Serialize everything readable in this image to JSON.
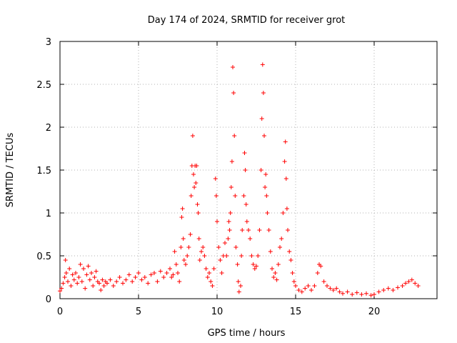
{
  "chart_data": {
    "type": "scatter",
    "title": "Day 174 of 2024, SRMTID for receiver grot",
    "xlabel": "GPS time / hours",
    "ylabel": "SRMTID / TECUs",
    "xlim": [
      0,
      24
    ],
    "ylim": [
      0,
      3
    ],
    "xticks": [
      0,
      5,
      10,
      15,
      20
    ],
    "xtick_labels": [
      "0",
      "5",
      "10",
      "15",
      "20"
    ],
    "yticks": [
      0,
      0.5,
      1,
      1.5,
      2,
      2.5,
      3
    ],
    "ytick_labels": [
      "0",
      "0.5",
      "1",
      "1.5",
      "2",
      "2.5",
      "3"
    ],
    "grid": true,
    "marker": "+",
    "color": "#ff0000",
    "series": [
      {
        "name": "SRMTID",
        "points": [
          [
            0.0,
            0.09
          ],
          [
            0.1,
            0.12
          ],
          [
            0.2,
            0.18
          ],
          [
            0.3,
            0.25
          ],
          [
            0.35,
            0.45
          ],
          [
            0.4,
            0.3
          ],
          [
            0.5,
            0.2
          ],
          [
            0.6,
            0.35
          ],
          [
            0.7,
            0.15
          ],
          [
            0.8,
            0.28
          ],
          [
            0.9,
            0.22
          ],
          [
            1.0,
            0.3
          ],
          [
            1.1,
            0.18
          ],
          [
            1.2,
            0.25
          ],
          [
            1.3,
            0.4
          ],
          [
            1.4,
            0.2
          ],
          [
            1.5,
            0.35
          ],
          [
            1.6,
            0.12
          ],
          [
            1.7,
            0.28
          ],
          [
            1.8,
            0.38
          ],
          [
            1.9,
            0.22
          ],
          [
            2.0,
            0.3
          ],
          [
            2.1,
            0.15
          ],
          [
            2.2,
            0.25
          ],
          [
            2.3,
            0.32
          ],
          [
            2.4,
            0.2
          ],
          [
            2.5,
            0.18
          ],
          [
            2.6,
            0.1
          ],
          [
            2.7,
            0.22
          ],
          [
            2.8,
            0.15
          ],
          [
            2.9,
            0.2
          ],
          [
            3.0,
            0.18
          ],
          [
            3.2,
            0.22
          ],
          [
            3.4,
            0.15
          ],
          [
            3.6,
            0.2
          ],
          [
            3.8,
            0.25
          ],
          [
            4.0,
            0.18
          ],
          [
            4.2,
            0.22
          ],
          [
            4.4,
            0.28
          ],
          [
            4.6,
            0.2
          ],
          [
            4.8,
            0.25
          ],
          [
            5.0,
            0.3
          ],
          [
            5.2,
            0.22
          ],
          [
            5.4,
            0.25
          ],
          [
            5.6,
            0.18
          ],
          [
            5.8,
            0.28
          ],
          [
            6.0,
            0.3
          ],
          [
            6.2,
            0.2
          ],
          [
            6.4,
            0.32
          ],
          [
            6.6,
            0.25
          ],
          [
            6.8,
            0.3
          ],
          [
            7.0,
            0.35
          ],
          [
            7.1,
            0.25
          ],
          [
            7.2,
            0.28
          ],
          [
            7.3,
            0.55
          ],
          [
            7.4,
            0.4
          ],
          [
            7.5,
            0.3
          ],
          [
            7.6,
            0.2
          ],
          [
            7.7,
            0.6
          ],
          [
            7.75,
            0.95
          ],
          [
            7.8,
            1.05
          ],
          [
            7.85,
            0.7
          ],
          [
            7.9,
            0.45
          ],
          [
            8.0,
            0.4
          ],
          [
            8.1,
            0.5
          ],
          [
            8.2,
            0.6
          ],
          [
            8.3,
            0.75
          ],
          [
            8.35,
            1.2
          ],
          [
            8.4,
            1.55
          ],
          [
            8.45,
            1.9
          ],
          [
            8.5,
            1.45
          ],
          [
            8.55,
            1.3
          ],
          [
            8.6,
            1.55
          ],
          [
            8.65,
            1.35
          ],
          [
            8.7,
            1.55
          ],
          [
            8.75,
            1.1
          ],
          [
            8.8,
            1.0
          ],
          [
            8.85,
            0.7
          ],
          [
            8.9,
            0.45
          ],
          [
            9.0,
            0.55
          ],
          [
            9.1,
            0.6
          ],
          [
            9.2,
            0.5
          ],
          [
            9.3,
            0.35
          ],
          [
            9.4,
            0.25
          ],
          [
            9.5,
            0.3
          ],
          [
            9.6,
            0.2
          ],
          [
            9.7,
            0.15
          ],
          [
            9.8,
            0.35
          ],
          [
            9.9,
            1.4
          ],
          [
            9.95,
            1.2
          ],
          [
            10.0,
            0.9
          ],
          [
            10.1,
            0.6
          ],
          [
            10.2,
            0.45
          ],
          [
            10.3,
            0.3
          ],
          [
            10.4,
            0.5
          ],
          [
            10.5,
            0.65
          ],
          [
            10.6,
            0.5
          ],
          [
            10.7,
            0.7
          ],
          [
            10.75,
            0.9
          ],
          [
            10.8,
            0.8
          ],
          [
            10.85,
            1.0
          ],
          [
            10.9,
            1.3
          ],
          [
            10.95,
            1.6
          ],
          [
            11.0,
            2.7
          ],
          [
            11.05,
            2.4
          ],
          [
            11.1,
            1.9
          ],
          [
            11.15,
            1.2
          ],
          [
            11.2,
            0.6
          ],
          [
            11.3,
            0.4
          ],
          [
            11.35,
            0.2
          ],
          [
            11.4,
            0.08
          ],
          [
            11.5,
            0.15
          ],
          [
            11.55,
            0.5
          ],
          [
            11.6,
            0.8
          ],
          [
            11.7,
            1.2
          ],
          [
            11.75,
            1.7
          ],
          [
            11.8,
            1.5
          ],
          [
            11.85,
            1.1
          ],
          [
            11.9,
            0.9
          ],
          [
            12.0,
            0.8
          ],
          [
            12.1,
            0.7
          ],
          [
            12.2,
            0.5
          ],
          [
            12.3,
            0.4
          ],
          [
            12.4,
            0.35
          ],
          [
            12.5,
            0.38
          ],
          [
            12.6,
            0.5
          ],
          [
            12.7,
            0.8
          ],
          [
            12.8,
            1.5
          ],
          [
            12.85,
            2.1
          ],
          [
            12.9,
            2.73
          ],
          [
            12.95,
            2.4
          ],
          [
            13.0,
            1.9
          ],
          [
            13.05,
            1.3
          ],
          [
            13.1,
            1.45
          ],
          [
            13.15,
            1.2
          ],
          [
            13.2,
            1.0
          ],
          [
            13.3,
            0.8
          ],
          [
            13.4,
            0.55
          ],
          [
            13.5,
            0.35
          ],
          [
            13.6,
            0.25
          ],
          [
            13.7,
            0.3
          ],
          [
            13.8,
            0.22
          ],
          [
            13.9,
            0.4
          ],
          [
            14.0,
            0.6
          ],
          [
            14.1,
            0.7
          ],
          [
            14.2,
            1.0
          ],
          [
            14.3,
            1.6
          ],
          [
            14.35,
            1.83
          ],
          [
            14.4,
            1.4
          ],
          [
            14.45,
            1.05
          ],
          [
            14.5,
            0.8
          ],
          [
            14.6,
            0.55
          ],
          [
            14.7,
            0.45
          ],
          [
            14.8,
            0.3
          ],
          [
            14.9,
            0.2
          ],
          [
            15.0,
            0.15
          ],
          [
            15.2,
            0.1
          ],
          [
            15.4,
            0.08
          ],
          [
            15.6,
            0.12
          ],
          [
            15.8,
            0.15
          ],
          [
            16.0,
            0.1
          ],
          [
            16.2,
            0.15
          ],
          [
            16.4,
            0.3
          ],
          [
            16.5,
            0.4
          ],
          [
            16.6,
            0.38
          ],
          [
            16.8,
            0.2
          ],
          [
            17.0,
            0.15
          ],
          [
            17.2,
            0.12
          ],
          [
            17.4,
            0.1
          ],
          [
            17.6,
            0.12
          ],
          [
            17.8,
            0.08
          ],
          [
            18.0,
            0.06
          ],
          [
            18.3,
            0.08
          ],
          [
            18.6,
            0.05
          ],
          [
            18.9,
            0.07
          ],
          [
            19.2,
            0.05
          ],
          [
            19.5,
            0.06
          ],
          [
            19.8,
            0.04
          ],
          [
            20.0,
            0.05
          ],
          [
            20.3,
            0.08
          ],
          [
            20.6,
            0.1
          ],
          [
            20.9,
            0.12
          ],
          [
            21.2,
            0.1
          ],
          [
            21.5,
            0.13
          ],
          [
            21.8,
            0.15
          ],
          [
            22.0,
            0.18
          ],
          [
            22.2,
            0.2
          ],
          [
            22.4,
            0.22
          ],
          [
            22.6,
            0.18
          ],
          [
            22.8,
            0.15
          ]
        ]
      }
    ]
  }
}
